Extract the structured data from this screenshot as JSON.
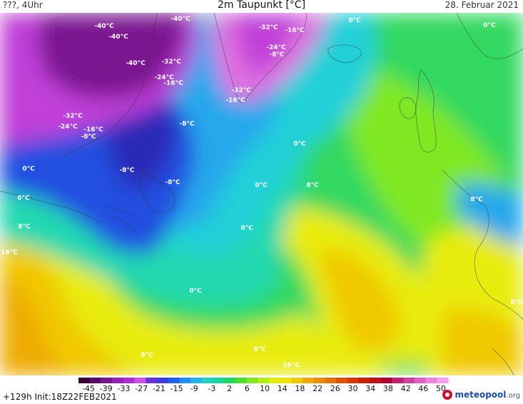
{
  "header": {
    "left_text": "???, 4Uhr",
    "title": "2m Taupunkt [°C]",
    "date": "28. Februar 2021"
  },
  "footer": {
    "run_info": "+129h  Init:18Z22FEB2021",
    "logo_text": "meteopool",
    "logo_tld": ".org"
  },
  "legend": {
    "ticks": [
      "-45",
      "-39",
      "-33",
      "-27",
      "-21",
      "-15",
      "-9",
      "-3",
      "2",
      "6",
      "10",
      "14",
      "18",
      "22",
      "26",
      "30",
      "34",
      "38",
      "42",
      "46",
      "50"
    ],
    "colors": [
      "#3a0033",
      "#5a0a66",
      "#7a1490",
      "#9a1eba",
      "#b42ad6",
      "#cc4fe8",
      "#6a2fd6",
      "#3a3ae0",
      "#1e5ef2",
      "#1e8ef2",
      "#22b4ea",
      "#1ed2c8",
      "#16d89a",
      "#22d85a",
      "#4ade2a",
      "#7ee81a",
      "#b2ee10",
      "#e2ee08",
      "#f2e200",
      "#f0c800",
      "#eeaa00",
      "#ea8e00",
      "#e67000",
      "#e05200",
      "#d83800",
      "#cc2000",
      "#c01010",
      "#b00030",
      "#c02070",
      "#d040a0",
      "#e060c8",
      "#ee80e0",
      "#f6a0ee"
    ]
  },
  "map": {
    "region": "North Atlantic, eastern North America, Greenland, western Europe",
    "colors": {
      "deep_magenta": "#7a1490",
      "magenta": "#c040d8",
      "pink": "#e070e0",
      "dark_blue": "#2a2ab8",
      "blue": "#2050e0",
      "light_blue": "#28a8ec",
      "cyan": "#20d0d8",
      "teal": "#20d8b0",
      "green": "#30d860",
      "lime": "#80e820",
      "yellow": "#e8ec10",
      "gold": "#f0c800",
      "orange": "#eeaa00"
    },
    "labels": [
      {
        "text": "-40°C"
      },
      {
        "text": "-40°C"
      },
      {
        "text": "-40°C"
      },
      {
        "text": "-40°C"
      },
      {
        "text": "-32°C"
      },
      {
        "text": "-24°C"
      },
      {
        "text": "-16°C"
      },
      {
        "text": "-32°C"
      },
      {
        "text": "-16°C"
      },
      {
        "text": "-24°C"
      },
      {
        "text": "-8°C"
      },
      {
        "text": "-32°C"
      },
      {
        "text": "-16°C"
      },
      {
        "text": "0°C"
      },
      {
        "text": "0°C"
      },
      {
        "text": "-32°C"
      },
      {
        "text": "-24°C"
      },
      {
        "text": "-16°C"
      },
      {
        "text": "-8°C"
      },
      {
        "text": "-8°C"
      },
      {
        "text": "-8°C"
      },
      {
        "text": "-8°C"
      },
      {
        "text": "0°C"
      },
      {
        "text": "0°C"
      },
      {
        "text": "0°C"
      },
      {
        "text": "0°C"
      },
      {
        "text": "0°C"
      },
      {
        "text": "0°C"
      },
      {
        "text": "8°C"
      },
      {
        "text": "8°C"
      },
      {
        "text": "8°C"
      },
      {
        "text": "8°C"
      },
      {
        "text": "8°C"
      },
      {
        "text": "8°C"
      },
      {
        "text": "16°C"
      },
      {
        "text": "16°C"
      }
    ]
  }
}
